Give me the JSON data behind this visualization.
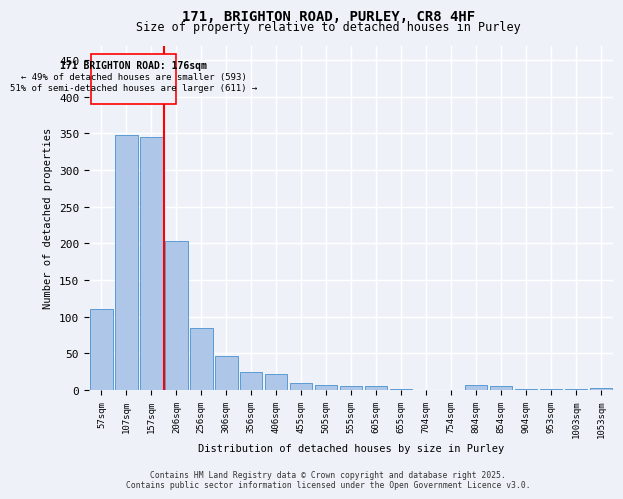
{
  "title_line1": "171, BRIGHTON ROAD, PURLEY, CR8 4HF",
  "title_line2": "Size of property relative to detached houses in Purley",
  "xlabel": "Distribution of detached houses by size in Purley",
  "ylabel": "Number of detached properties",
  "categories": [
    "57sqm",
    "107sqm",
    "157sqm",
    "206sqm",
    "256sqm",
    "306sqm",
    "356sqm",
    "406sqm",
    "455sqm",
    "505sqm",
    "555sqm",
    "605sqm",
    "655sqm",
    "704sqm",
    "754sqm",
    "804sqm",
    "854sqm",
    "904sqm",
    "953sqm",
    "1003sqm",
    "1053sqm"
  ],
  "values": [
    110,
    348,
    345,
    204,
    85,
    47,
    25,
    22,
    10,
    7,
    6,
    5,
    1,
    0,
    0,
    7,
    6,
    2,
    1,
    1,
    3
  ],
  "bar_color": "#aec6e8",
  "bar_edge_color": "#5b9bd5",
  "red_line_x": 2.5,
  "annotation_text_line1": "171 BRIGHTON ROAD: 176sqm",
  "annotation_text_line2": "← 49% of detached houses are smaller (593)",
  "annotation_text_line3": "51% of semi-detached houses are larger (611) →",
  "ylim": [
    0,
    470
  ],
  "yticks": [
    0,
    50,
    100,
    150,
    200,
    250,
    300,
    350,
    400,
    450
  ],
  "bg_color": "#eef2f8",
  "grid_color": "#ffffff",
  "footnote_line1": "Contains HM Land Registry data © Crown copyright and database right 2025.",
  "footnote_line2": "Contains public sector information licensed under the Open Government Licence v3.0."
}
